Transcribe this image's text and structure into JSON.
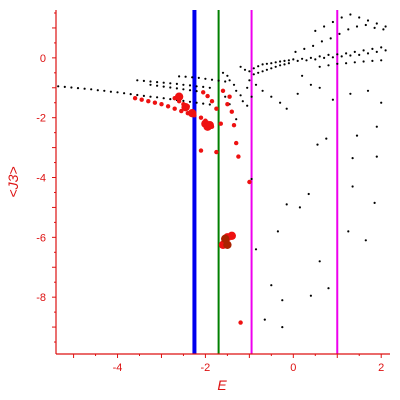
{
  "chart_data": {
    "type": "scatter",
    "title": "",
    "xlabel": "E",
    "ylabel": "<J3>",
    "xlim": [
      -5.4,
      2.2
    ],
    "ylim": [
      -9.9,
      1.6
    ],
    "xticks": [
      {
        "value": -4,
        "label": "-4"
      },
      {
        "value": -2,
        "label": "-2"
      },
      {
        "value": 0,
        "label": "0"
      },
      {
        "value": 2,
        "label": "2"
      }
    ],
    "yticks": [
      {
        "value": 0,
        "label": "0"
      },
      {
        "value": -2,
        "label": "-2"
      },
      {
        "value": -4,
        "label": "-4"
      },
      {
        "value": -6,
        "label": "-6"
      },
      {
        "value": -8,
        "label": "-8"
      }
    ],
    "grid": false,
    "vertical_lines": [
      {
        "x": -2.25,
        "color": "#0000ee",
        "width": "thick"
      },
      {
        "x": -1.7,
        "color": "#008000",
        "width": "medium"
      },
      {
        "x": -0.95,
        "color": "#ee00ee",
        "width": "medium"
      },
      {
        "x": 1.0,
        "color": "#ee00ee",
        "width": "medium"
      }
    ],
    "colors": {
      "axis": "#dd1111",
      "small_points": "#000000",
      "large_points": "#ee1111",
      "large_points_dark": "#aa2200"
    },
    "series": [
      {
        "color": "#000000",
        "marker": "small-dot",
        "points": [
          [
            -5.35,
            -0.95
          ],
          [
            -5.2,
            -0.97
          ],
          [
            -5.05,
            -0.99
          ],
          [
            -4.9,
            -1.01
          ],
          [
            -4.75,
            -1.03
          ],
          [
            -4.6,
            -1.05
          ],
          [
            -4.45,
            -1.08
          ],
          [
            -4.3,
            -1.1
          ],
          [
            -4.15,
            -1.13
          ],
          [
            -4.0,
            -1.15
          ],
          [
            -3.85,
            -1.18
          ],
          [
            -3.7,
            -1.21
          ],
          [
            -3.55,
            -1.24
          ],
          [
            -3.4,
            -1.27
          ],
          [
            -3.25,
            -1.3
          ],
          [
            -3.1,
            -1.32
          ],
          [
            -2.95,
            -1.35
          ],
          [
            -2.8,
            -1.38
          ],
          [
            -2.65,
            -1.41
          ],
          [
            -2.5,
            -1.44
          ],
          [
            -2.35,
            -1.47
          ],
          [
            -2.2,
            -1.5
          ],
          [
            -2.05,
            -1.53
          ],
          [
            -1.9,
            -1.56
          ],
          [
            -3.55,
            -0.75
          ],
          [
            -3.4,
            -0.77
          ],
          [
            -3.25,
            -0.79
          ],
          [
            -3.1,
            -0.81
          ],
          [
            -2.95,
            -0.83
          ],
          [
            -2.8,
            -0.85
          ],
          [
            -2.65,
            -0.87
          ],
          [
            -2.5,
            -0.9
          ],
          [
            -2.35,
            -0.92
          ],
          [
            -2.2,
            -0.95
          ],
          [
            -2.05,
            -0.97
          ],
          [
            -1.9,
            -1.0
          ],
          [
            -3.25,
            -0.9
          ],
          [
            -3.1,
            -0.93
          ],
          [
            -2.95,
            -0.96
          ],
          [
            -2.8,
            -0.99
          ],
          [
            -2.65,
            -1.02
          ],
          [
            -2.5,
            -1.05
          ],
          [
            -2.35,
            -1.08
          ],
          [
            -2.2,
            -1.11
          ],
          [
            -2.6,
            -0.62
          ],
          [
            -2.45,
            -0.63
          ],
          [
            -2.3,
            -0.65
          ],
          [
            -2.15,
            -0.67
          ],
          [
            -2.0,
            -0.7
          ],
          [
            -1.85,
            -0.73
          ],
          [
            -1.7,
            -0.76
          ],
          [
            -1.55,
            -0.79
          ],
          [
            -1.6,
            -0.5
          ],
          [
            -1.5,
            -0.6
          ],
          [
            -1.45,
            -0.75
          ],
          [
            -1.35,
            -0.9
          ],
          [
            -1.3,
            -1.1
          ],
          [
            -1.2,
            -1.25
          ],
          [
            -1.15,
            -1.45
          ],
          [
            -1.05,
            -1.6
          ],
          [
            -1.55,
            -1.3
          ],
          [
            -1.45,
            -1.55
          ],
          [
            -1.4,
            -1.8
          ],
          [
            -1.3,
            -2.05
          ],
          [
            -1.2,
            -0.3
          ],
          [
            -1.1,
            -0.4
          ],
          [
            -1.0,
            -0.45
          ],
          [
            -0.9,
            -0.35
          ],
          [
            -0.8,
            -0.28
          ],
          [
            -0.7,
            -0.22
          ],
          [
            -0.6,
            -0.2
          ],
          [
            -0.5,
            -0.18
          ],
          [
            -0.4,
            -0.15
          ],
          [
            -0.3,
            -0.12
          ],
          [
            -0.2,
            -0.1
          ],
          [
            -0.1,
            -0.08
          ],
          [
            -0.9,
            -0.55
          ],
          [
            -0.8,
            -0.5
          ],
          [
            -0.7,
            -0.45
          ],
          [
            -0.6,
            -0.4
          ],
          [
            -0.5,
            -0.35
          ],
          [
            -0.4,
            -0.3
          ],
          [
            -0.3,
            -0.25
          ],
          [
            -0.2,
            -0.22
          ],
          [
            -0.1,
            -0.18
          ],
          [
            -1.0,
            -0.75
          ],
          [
            -0.85,
            -0.9
          ],
          [
            -0.7,
            -1.1
          ],
          [
            -0.5,
            -1.3
          ],
          [
            -0.3,
            -1.5
          ],
          [
            -0.15,
            -1.7
          ],
          [
            -1.05,
            -1.0
          ],
          [
            -0.95,
            -1.3
          ],
          [
            0.0,
            -0.05
          ],
          [
            0.1,
            -0.1
          ],
          [
            0.2,
            -0.03
          ],
          [
            0.3,
            -0.08
          ],
          [
            0.4,
            0.0
          ],
          [
            0.5,
            -0.05
          ],
          [
            0.6,
            0.05
          ],
          [
            0.7,
            0.0
          ],
          [
            0.8,
            0.1
          ],
          [
            0.9,
            0.02
          ],
          [
            1.0,
            0.12
          ],
          [
            1.1,
            0.05
          ],
          [
            1.2,
            0.15
          ],
          [
            1.3,
            0.08
          ],
          [
            1.4,
            0.2
          ],
          [
            1.5,
            0.1
          ],
          [
            1.6,
            0.25
          ],
          [
            1.7,
            0.15
          ],
          [
            1.8,
            0.3
          ],
          [
            1.9,
            0.2
          ],
          [
            2.0,
            0.35
          ],
          [
            2.1,
            0.25
          ],
          [
            0.05,
            0.2
          ],
          [
            0.25,
            0.3
          ],
          [
            0.45,
            0.4
          ],
          [
            0.65,
            0.55
          ],
          [
            0.85,
            0.65
          ],
          [
            1.05,
            0.8
          ],
          [
            1.25,
            0.95
          ],
          [
            1.45,
            1.05
          ],
          [
            1.65,
            1.1
          ],
          [
            1.85,
            1.0
          ],
          [
            2.05,
            0.95
          ],
          [
            0.5,
            0.9
          ],
          [
            0.7,
            1.05
          ],
          [
            0.9,
            1.2
          ],
          [
            1.1,
            1.35
          ],
          [
            1.3,
            1.45
          ],
          [
            1.5,
            1.35
          ],
          [
            1.7,
            1.25
          ],
          [
            1.9,
            1.15
          ],
          [
            2.1,
            1.05
          ],
          [
            0.6,
            -0.3
          ],
          [
            0.8,
            -0.25
          ],
          [
            1.0,
            -0.2
          ],
          [
            1.2,
            -0.18
          ],
          [
            1.4,
            -0.15
          ],
          [
            1.6,
            -0.12
          ],
          [
            1.8,
            -0.1
          ],
          [
            2.0,
            -0.08
          ],
          [
            0.2,
            -0.6
          ],
          [
            0.4,
            -0.9
          ],
          [
            0.1,
            -1.2
          ],
          [
            0.6,
            -1.0
          ],
          [
            0.9,
            -1.4
          ],
          [
            1.3,
            -1.2
          ],
          [
            1.7,
            -1.1
          ],
          [
            2.0,
            -1.5
          ],
          [
            1.9,
            -2.3
          ],
          [
            0.55,
            -2.9
          ],
          [
            0.75,
            -2.7
          ],
          [
            1.35,
            -3.35
          ],
          [
            1.45,
            -2.6
          ],
          [
            1.9,
            -3.3
          ],
          [
            -0.15,
            -4.9
          ],
          [
            0.15,
            -5.0
          ],
          [
            0.35,
            -4.55
          ],
          [
            1.35,
            -4.3
          ],
          [
            1.85,
            -4.85
          ],
          [
            -0.35,
            -5.8
          ],
          [
            0.6,
            -6.8
          ],
          [
            1.25,
            -5.8
          ],
          [
            1.65,
            -6.1
          ],
          [
            -0.85,
            -6.4
          ],
          [
            -0.5,
            -7.6
          ],
          [
            -0.25,
            -8.1
          ],
          [
            0.4,
            -7.95
          ],
          [
            0.8,
            -7.7
          ],
          [
            -0.65,
            -8.75
          ],
          [
            -0.25,
            -9.0
          ],
          [
            -0.95,
            -4.05
          ]
        ]
      },
      {
        "color": "#ee1111",
        "marker": "large-dot",
        "points": [
          [
            -3.6,
            -1.35
          ],
          [
            -3.45,
            -1.4
          ],
          [
            -3.3,
            -1.45
          ],
          [
            -3.15,
            -1.5
          ],
          [
            -3.0,
            -1.55
          ],
          [
            -2.85,
            -1.62
          ],
          [
            -2.7,
            -1.7
          ],
          [
            -2.55,
            -1.78
          ],
          [
            -2.4,
            -1.85
          ],
          [
            -2.25,
            -1.92
          ],
          [
            -2.1,
            -2.0
          ],
          [
            -2.0,
            -2.1
          ],
          [
            -1.95,
            -2.2
          ],
          [
            -1.85,
            -2.3
          ],
          [
            -2.7,
            -1.35
          ],
          [
            -2.6,
            -1.45
          ],
          [
            -2.5,
            -1.55
          ],
          [
            -2.4,
            -1.62
          ],
          [
            -2.05,
            -1.15
          ],
          [
            -1.95,
            -1.28
          ],
          [
            -1.85,
            -1.45
          ],
          [
            -1.6,
            -1.1
          ],
          [
            -1.45,
            -1.3
          ],
          [
            -1.5,
            -1.55
          ],
          [
            -1.4,
            -1.8
          ],
          [
            -1.35,
            -2.25
          ],
          [
            -1.3,
            -2.85
          ],
          [
            -1.65,
            -2.2
          ],
          [
            -1.75,
            -1.7
          ],
          [
            -2.1,
            -3.1
          ],
          [
            -1.25,
            -3.3
          ],
          [
            -1.75,
            -3.15
          ]
        ]
      },
      {
        "color": "#ee1111",
        "marker": "big-dot",
        "points": [
          [
            -2.6,
            -1.3
          ],
          [
            -2.45,
            -1.65
          ],
          [
            -2.3,
            -1.85
          ],
          [
            -2.0,
            -2.2
          ],
          [
            -1.9,
            -2.25
          ],
          [
            -1.95,
            -2.3
          ],
          [
            -1.5,
            -6.0
          ],
          [
            -1.4,
            -5.95
          ],
          [
            -1.6,
            -6.25
          ]
        ]
      },
      {
        "color": "#aa2200",
        "marker": "big-dot",
        "points": [
          [
            -1.5,
            -6.25
          ],
          [
            -1.55,
            -6.05
          ]
        ]
      },
      {
        "color": "#ee1111",
        "marker": "large-dot",
        "points": [
          [
            -1.0,
            -4.15
          ],
          [
            -1.2,
            -8.85
          ]
        ]
      }
    ]
  }
}
